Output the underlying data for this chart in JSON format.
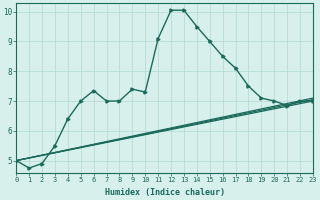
{
  "xlabel": "Humidex (Indice chaleur)",
  "ylabel": "",
  "xlim": [
    0,
    23
  ],
  "ylim": [
    4.6,
    10.3
  ],
  "background_color": "#d8f0ec",
  "grid_color": "#b0d8d0",
  "line_color": "#1a6a5a",
  "xticks": [
    0,
    1,
    2,
    3,
    4,
    5,
    6,
    7,
    8,
    9,
    10,
    11,
    12,
    13,
    14,
    15,
    16,
    17,
    18,
    19,
    20,
    21,
    22,
    23
  ],
  "yticks": [
    5,
    6,
    7,
    8,
    9,
    10
  ],
  "series": [
    {
      "x": [
        0,
        1,
        2,
        3,
        4,
        5,
        6,
        7,
        8,
        9,
        10,
        11,
        12,
        13,
        14,
        15,
        16,
        17,
        18,
        19,
        20,
        21,
        22,
        23
      ],
      "y": [
        5.0,
        4.75,
        4.9,
        5.5,
        6.4,
        7.0,
        7.35,
        7.0,
        7.0,
        7.4,
        7.3,
        9.1,
        10.05,
        10.05,
        9.5,
        9.0,
        8.5,
        8.1,
        7.5,
        7.1,
        7.0,
        6.85,
        7.0,
        7.0
      ],
      "marker": true,
      "linewidth": 1.0
    },
    {
      "x": [
        0,
        23
      ],
      "y": [
        5.0,
        7.0
      ],
      "marker": false,
      "linewidth": 0.9
    },
    {
      "x": [
        0,
        23
      ],
      "y": [
        5.0,
        7.05
      ],
      "marker": false,
      "linewidth": 0.9
    },
    {
      "x": [
        0,
        23
      ],
      "y": [
        5.0,
        7.1
      ],
      "marker": false,
      "linewidth": 0.9
    }
  ]
}
